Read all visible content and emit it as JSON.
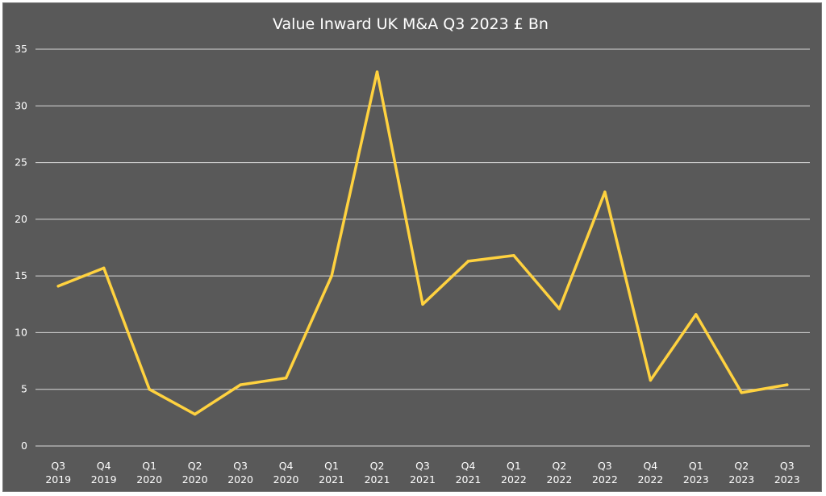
{
  "chart_data": {
    "type": "line",
    "title": "Value Inward UK M&A Q3 2023 £ Bn",
    "xlabel": "",
    "ylabel": "",
    "ylim": [
      0,
      35
    ],
    "yticks": [
      0,
      5,
      10,
      15,
      20,
      25,
      30,
      35
    ],
    "grid": true,
    "legend": "none",
    "categories": [
      [
        "Q3",
        "2019"
      ],
      [
        "Q4",
        "2019"
      ],
      [
        "Q1",
        "2020"
      ],
      [
        "Q2",
        "2020"
      ],
      [
        "Q3",
        "2020"
      ],
      [
        "Q4",
        "2020"
      ],
      [
        "Q1",
        "2021"
      ],
      [
        "Q2",
        "2021"
      ],
      [
        "Q3",
        "2021"
      ],
      [
        "Q4",
        "2021"
      ],
      [
        "Q1",
        "2022"
      ],
      [
        "Q2",
        "2022"
      ],
      [
        "Q3",
        "2022"
      ],
      [
        "Q4",
        "2022"
      ],
      [
        "Q1",
        "2023"
      ],
      [
        "Q2",
        "2023"
      ],
      [
        "Q3",
        "2023"
      ]
    ],
    "series": [
      {
        "values": [
          14.1,
          15.7,
          5.0,
          2.8,
          5.4,
          6.0,
          15.0,
          33.0,
          12.5,
          16.3,
          16.8,
          12.1,
          22.4,
          5.8,
          11.6,
          4.7,
          5.4
        ],
        "color": "#ffd23f"
      }
    ]
  },
  "colors": {
    "background": "#595959",
    "grid": "#d9d9d9",
    "text": "#ffffff",
    "line": "#ffd23f"
  }
}
